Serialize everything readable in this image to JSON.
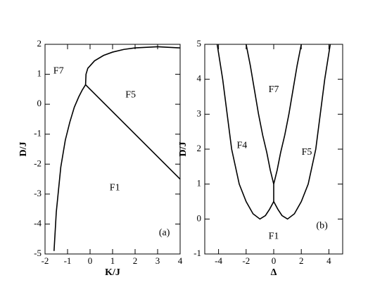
{
  "chart_data": [
    {
      "type": "line",
      "xlabel": "K/J",
      "ylabel": "D/J",
      "xlim": [
        -2,
        4
      ],
      "ylim": [
        -5,
        2
      ],
      "xticks": [
        -2,
        -1,
        0,
        1,
        2,
        3,
        4
      ],
      "yticks": [
        -5,
        -4,
        -3,
        -2,
        -1,
        0,
        1,
        2
      ],
      "series": [
        {
          "color": "#000000",
          "x": [
            -1.6,
            -1.5,
            -1.3,
            -1.1,
            -0.9,
            -0.7,
            -0.5,
            -0.35,
            -0.2
          ],
          "values": [
            -4.9,
            -3.6,
            -2.1,
            -1.2,
            -0.6,
            -0.1,
            0.25,
            0.47,
            0.65
          ]
        },
        {
          "color": "#000000",
          "x": [
            -0.2,
            -0.18,
            -0.1,
            0.2,
            0.6,
            1,
            1.5,
            2,
            3,
            4
          ],
          "values": [
            0.65,
            1.0,
            1.2,
            1.45,
            1.63,
            1.74,
            1.83,
            1.88,
            1.92,
            1.88
          ]
        },
        {
          "color": "#000000",
          "x": [
            -0.2,
            4
          ],
          "values": [
            0.65,
            -2.5
          ]
        }
      ],
      "annotations": [
        {
          "text": "F7",
          "x": -1.4,
          "y": 1.1
        },
        {
          "text": "F5",
          "x": 1.8,
          "y": 0.3
        },
        {
          "text": "F1",
          "x": 1.1,
          "y": -2.8
        },
        {
          "text": "(a)",
          "x": 3.3,
          "y": -4.3
        }
      ]
    },
    {
      "type": "line",
      "xlabel": "Δ",
      "ylabel": "D/J",
      "xlim": [
        -5,
        5
      ],
      "ylim": [
        -1,
        5
      ],
      "xticks": [
        -4,
        -2,
        0,
        2,
        4
      ],
      "yticks": [
        -1,
        0,
        1,
        2,
        3,
        4,
        5
      ],
      "series": [
        {
          "color": "#000000",
          "x": [
            -4.1,
            -3.7,
            -3.05,
            -2.5,
            -2,
            -1.5,
            -1,
            -0.6,
            -0.3,
            0
          ],
          "values": [
            5,
            4,
            2,
            1,
            0.5,
            0.15,
            0,
            0.1,
            0.28,
            0.5
          ]
        },
        {
          "color": "#000000",
          "x": [
            4.1,
            3.7,
            3.05,
            2.5,
            2,
            1.5,
            1,
            0.6,
            0.3,
            0
          ],
          "values": [
            5,
            4,
            2,
            1,
            0.5,
            0.15,
            0,
            0.1,
            0.28,
            0.5
          ]
        },
        {
          "color": "#000000",
          "x": [
            -2,
            -1.7,
            -1.4,
            -1.1,
            -0.8,
            -0.5,
            -0.25,
            0
          ],
          "values": [
            5,
            4.4,
            3.7,
            3,
            2.4,
            1.9,
            1.4,
            1
          ]
        },
        {
          "color": "#000000",
          "x": [
            2,
            1.7,
            1.4,
            1.1,
            0.8,
            0.5,
            0.25,
            0
          ],
          "values": [
            5,
            4.4,
            3.7,
            3,
            2.4,
            1.9,
            1.4,
            1
          ]
        },
        {
          "color": "#000000",
          "x": [
            0,
            0
          ],
          "values": [
            0.5,
            1
          ]
        }
      ],
      "annotations": [
        {
          "text": "F7",
          "x": 0,
          "y": 3.7
        },
        {
          "text": "F4",
          "x": -2.3,
          "y": 2.1
        },
        {
          "text": "F5",
          "x": 2.4,
          "y": 1.9
        },
        {
          "text": "F1",
          "x": 0,
          "y": -0.5
        },
        {
          "text": "(b)",
          "x": 3.5,
          "y": -0.2
        }
      ]
    }
  ]
}
